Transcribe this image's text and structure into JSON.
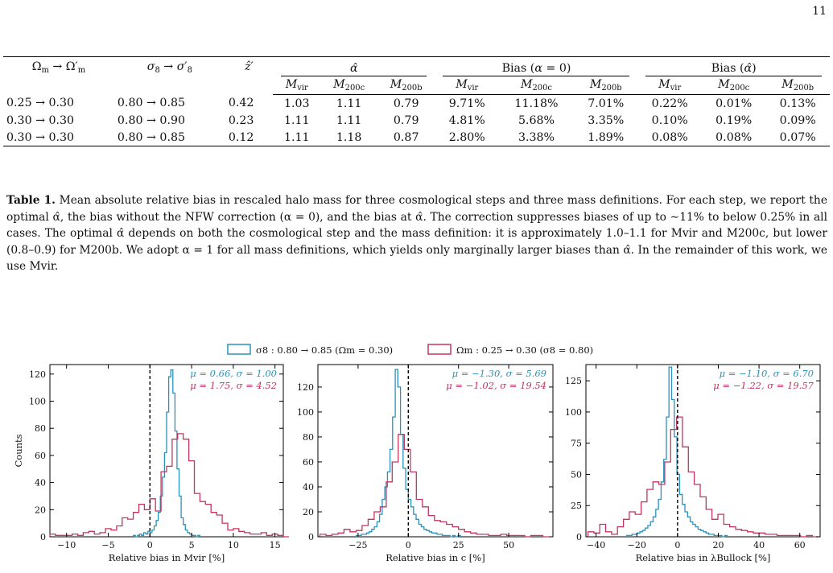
{
  "page_number": "11",
  "table": {
    "col_headers": [
      "Ωm → Ω′m",
      "σ8 → σ′8",
      "ẑ′"
    ],
    "group_headers": [
      "α̂",
      "Bias (α = 0)",
      "Bias (α̂)"
    ],
    "sub_headers": [
      "Mvir",
      "M200c",
      "M200b"
    ],
    "rows": [
      [
        "0.25 → 0.30",
        "0.80 → 0.85",
        "0.42",
        "1.03",
        "1.11",
        "0.79",
        "9.71%",
        "11.18%",
        "7.01%",
        "0.22%",
        "0.01%",
        "0.13%"
      ],
      [
        "0.30 → 0.30",
        "0.80 → 0.90",
        "0.23",
        "1.11",
        "1.11",
        "0.79",
        "4.81%",
        "5.68%",
        "3.35%",
        "0.10%",
        "0.19%",
        "0.09%"
      ],
      [
        "0.30 → 0.30",
        "0.80 → 0.85",
        "0.12",
        "1.11",
        "1.18",
        "0.87",
        "2.80%",
        "3.38%",
        "1.89%",
        "0.08%",
        "0.08%",
        "0.07%"
      ]
    ]
  },
  "caption": {
    "label": "Table 1.",
    "text": "Mean absolute relative bias in rescaled halo mass for three cosmological steps and three mass definitions. For each step, we report the optimal α̂, the bias without the NFW correction (α = 0), and the bias at α̂. The correction suppresses biases of up to ∼11% to below 0.25% in all cases. The optimal α̂ depends on both the cosmological step and the mass definition: it is approximately 1.0–1.1 for Mvir and M200c, but lower (0.8–0.9) for M200b. We adopt α = 1 for all mass definitions, which yields only marginally larger biases than α̂. In the remainder of this work, we use Mvir."
  },
  "colors": {
    "blue": "#2a92bd",
    "red": "#c5345f"
  },
  "legend": [
    "σ8 : 0.80 → 0.85 (Ωm = 0.30)",
    "Ωm : 0.25 → 0.30 (σ8 = 0.80)"
  ],
  "ylabel": "Counts",
  "chart_data": [
    {
      "type": "histogram",
      "xlabel": "Relative bias in Mvir [%]",
      "xlim": [
        -12,
        16
      ],
      "ylim": [
        0,
        127
      ],
      "xticks": [
        -10,
        -5,
        0,
        5,
        10,
        15
      ],
      "yticks": [
        0,
        20,
        40,
        60,
        80,
        100,
        120
      ],
      "annotations": [
        "μ = 0.66, σ = 1.00",
        "μ = 1.75, σ = 4.52"
      ],
      "series": [
        {
          "color": "blue",
          "x0": -2.0,
          "bin": 0.25,
          "values": [
            1,
            0,
            1,
            2,
            1,
            3,
            2,
            4,
            3,
            5,
            8,
            12,
            18,
            30,
            44,
            62,
            92,
            118,
            123,
            106,
            78,
            50,
            30,
            14,
            9,
            5,
            3,
            2,
            1,
            1,
            0,
            1
          ]
        },
        {
          "color": "red",
          "x0": -12,
          "bin": 0.6667,
          "values": [
            2,
            1,
            1,
            1,
            2,
            1,
            3,
            4,
            2,
            3,
            6,
            5,
            8,
            14,
            13,
            18,
            24,
            20,
            28,
            19,
            48,
            52,
            72,
            76,
            72,
            56,
            32,
            26,
            24,
            18,
            16,
            10,
            5,
            6,
            4,
            3,
            2,
            2,
            3,
            1,
            2,
            1,
            0
          ]
        }
      ]
    },
    {
      "type": "histogram",
      "xlabel": "Relative bias in c [%]",
      "xlim": [
        -45,
        72
      ],
      "ylim": [
        0,
        138
      ],
      "xticks": [
        -25,
        0,
        25,
        50
      ],
      "yticks": [
        0,
        20,
        40,
        60,
        80,
        100,
        120
      ],
      "annotations": [
        "μ = −1.30, σ = 5.69",
        "μ = −1.02, σ = 19.54"
      ],
      "series": [
        {
          "color": "blue",
          "x0": -26,
          "bin": 1.3,
          "values": [
            1,
            1,
            2,
            2,
            3,
            4,
            6,
            8,
            12,
            18,
            30,
            40,
            52,
            70,
            96,
            134,
            120,
            82,
            55,
            38,
            30,
            24,
            18,
            14,
            10,
            8,
            6,
            5,
            4,
            3,
            3,
            2,
            2,
            1,
            1,
            1,
            0,
            1,
            0,
            1
          ]
        },
        {
          "color": "red",
          "x0": -44,
          "bin": 3.0,
          "values": [
            2,
            1,
            2,
            3,
            6,
            4,
            5,
            9,
            14,
            20,
            24,
            44,
            60,
            82,
            70,
            52,
            30,
            24,
            17,
            13,
            12,
            10,
            8,
            6,
            4,
            3,
            2,
            2,
            1,
            1,
            2,
            1,
            1,
            1,
            0,
            1,
            1,
            0
          ]
        }
      ]
    },
    {
      "type": "histogram",
      "xlabel": "Relative bias in λBullock [%]",
      "xlim": [
        -45,
        70
      ],
      "ylim": [
        0,
        138
      ],
      "xticks": [
        -40,
        -20,
        0,
        20,
        40,
        60
      ],
      "yticks": [
        0,
        25,
        50,
        75,
        100,
        125
      ],
      "annotations": [
        "μ = −1.10, σ = 6.70",
        "μ = −1.22, σ = 19.57"
      ],
      "series": [
        {
          "color": "blue",
          "x0": -25,
          "bin": 1.3,
          "values": [
            1,
            1,
            2,
            2,
            3,
            4,
            5,
            7,
            9,
            12,
            16,
            22,
            30,
            44,
            62,
            96,
            136,
            110,
            80,
            50,
            34,
            26,
            20,
            16,
            12,
            10,
            8,
            6,
            5,
            4,
            3,
            2,
            2,
            1,
            1,
            1,
            0,
            1
          ]
        },
        {
          "color": "red",
          "x0": -44,
          "bin": 2.9,
          "values": [
            4,
            3,
            10,
            4,
            2,
            8,
            14,
            20,
            18,
            28,
            38,
            44,
            42,
            60,
            86,
            96,
            72,
            52,
            42,
            32,
            22,
            14,
            18,
            10,
            8,
            6,
            5,
            4,
            3,
            3,
            2,
            2,
            1,
            1,
            1,
            1,
            0,
            1,
            0
          ]
        }
      ]
    }
  ]
}
